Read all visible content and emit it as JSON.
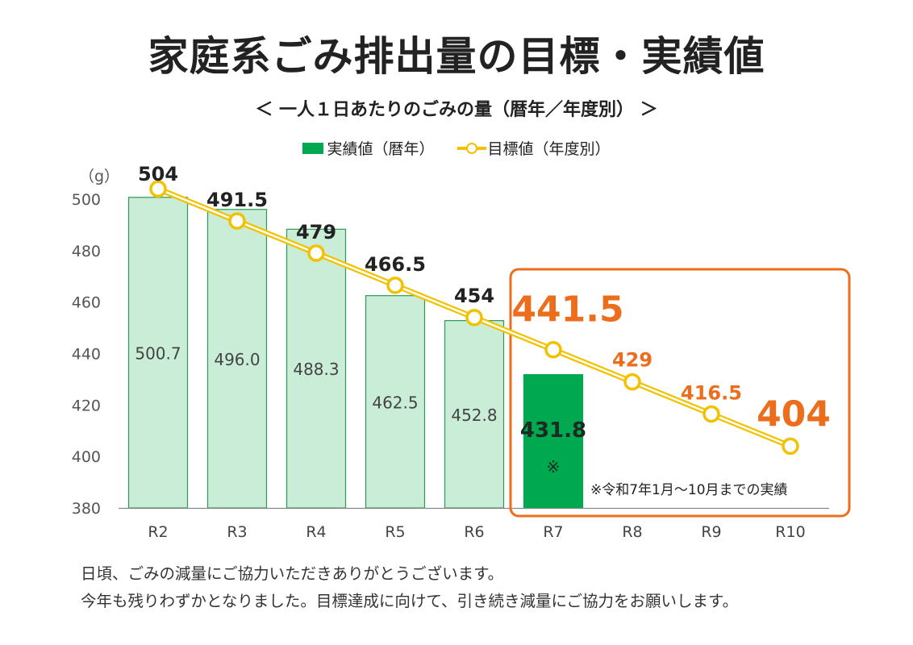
{
  "title": "家庭系ごみ排出量の目標・実績値",
  "subtitle": "＜ 一人１日あたりのごみの量（暦年／年度別） ＞",
  "legend": {
    "actual": "実績値（暦年）",
    "target": "目標値（年度別）"
  },
  "y_unit": "（g）",
  "note": "※令和7年1月〜10月までの実績",
  "footer": {
    "line1": "日頃、ごみの減量にご協力いただきありがとうございます。",
    "line2": "今年も残りわずかとなりました。目標達成に向けて、引き続き減量にご協力をお願いします。"
  },
  "colors": {
    "bar_past": "#c9edd7",
    "bar_past_border": "#2e9a55",
    "bar_current": "#00a94f",
    "target_line": "#f2c200",
    "highlight": "#ec6d1c"
  },
  "chart_data": {
    "type": "bar",
    "categories": [
      "R2",
      "R3",
      "R4",
      "R5",
      "R6",
      "R7",
      "R8",
      "R9",
      "R10"
    ],
    "series": [
      {
        "name": "実績値（暦年）",
        "type": "bar",
        "values": [
          500.7,
          496.0,
          488.3,
          462.5,
          452.8,
          431.8,
          null,
          null,
          null
        ],
        "labels": [
          "500.7",
          "496.0",
          "488.3",
          "462.5",
          "452.8",
          "431.8",
          "",
          "",
          ""
        ],
        "marks": [
          "",
          "",
          "",
          "",
          "",
          "※",
          "",
          "",
          ""
        ]
      },
      {
        "name": "目標値（年度別）",
        "type": "line",
        "values": [
          504,
          491.5,
          479,
          466.5,
          454,
          441.5,
          429,
          416.5,
          404
        ],
        "labels": [
          "504",
          "491.5",
          "479",
          "466.5",
          "454",
          "441.5",
          "429",
          "416.5",
          "404"
        ]
      }
    ],
    "y_ticks": [
      "500",
      "480",
      "460",
      "440",
      "420",
      "400",
      "380"
    ],
    "ylim": [
      380,
      510
    ],
    "highlight_categories": [
      "R7",
      "R8",
      "R9",
      "R10"
    ],
    "grid": false,
    "legend_position": "top"
  }
}
